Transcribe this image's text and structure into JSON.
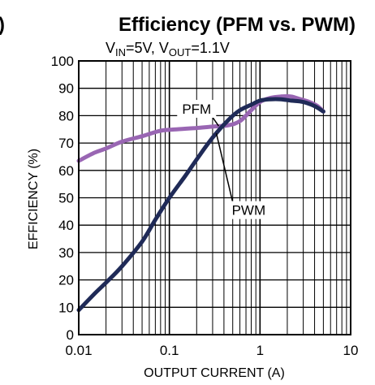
{
  "header": {
    "left_fragment": ")",
    "title": "Efficiency (PFM vs. PWM)",
    "condition": {
      "vin_label": "V",
      "vin_sub": "IN",
      "vin_value": "=5V, ",
      "vout_label": "V",
      "vout_sub": "OUT",
      "vout_value": "=1.1V"
    }
  },
  "chart_data": {
    "type": "line",
    "title": "Efficiency (PFM vs. PWM)",
    "xlabel": "OUTPUT CURRENT (A)",
    "ylabel": "EFFICIENCY (%)",
    "xscale": "log",
    "xlim": [
      0.01,
      10
    ],
    "ylim": [
      0,
      100
    ],
    "xticks": [
      0.01,
      0.1,
      1,
      10
    ],
    "xtick_labels": [
      "0.01",
      "0.1",
      "1",
      "10"
    ],
    "yticks": [
      0,
      10,
      20,
      30,
      40,
      50,
      60,
      70,
      80,
      90,
      100
    ],
    "ytick_labels": [
      "0",
      "10",
      "20",
      "30",
      "40",
      "50",
      "60",
      "70",
      "80",
      "90",
      "100"
    ],
    "grid": true,
    "series": [
      {
        "name": "PFM",
        "color": "#9966b3",
        "x": [
          0.01,
          0.015,
          0.02,
          0.03,
          0.05,
          0.08,
          0.12,
          0.2,
          0.3,
          0.45,
          0.6,
          0.8,
          1.0,
          1.3,
          1.7,
          2.2,
          2.8,
          3.5,
          4.3,
          5.0
        ],
        "y": [
          63.5,
          66.5,
          68,
          70.5,
          72.5,
          74.5,
          75,
          75.5,
          76,
          76.5,
          78,
          82,
          85,
          86.5,
          87,
          87,
          86,
          85,
          83.5,
          81.5
        ]
      },
      {
        "name": "PWM",
        "color": "#1f2a57",
        "x": [
          0.01,
          0.015,
          0.02,
          0.03,
          0.05,
          0.07,
          0.1,
          0.15,
          0.2,
          0.3,
          0.45,
          0.6,
          0.8,
          1.0,
          1.3,
          1.7,
          2.2,
          3.0,
          4.0,
          5.0
        ],
        "y": [
          9,
          15,
          19,
          25,
          34,
          42,
          50,
          58,
          64,
          72,
          78.5,
          82,
          84,
          85.5,
          86,
          86,
          85.5,
          85,
          83.5,
          81.5
        ]
      }
    ],
    "annotations": [
      {
        "text": "PFM",
        "x": 0.2,
        "y": 82.5,
        "points_to": "PFM"
      },
      {
        "text": "PWM",
        "x": 0.75,
        "y": 45.5,
        "points_to": "PWM"
      }
    ]
  }
}
